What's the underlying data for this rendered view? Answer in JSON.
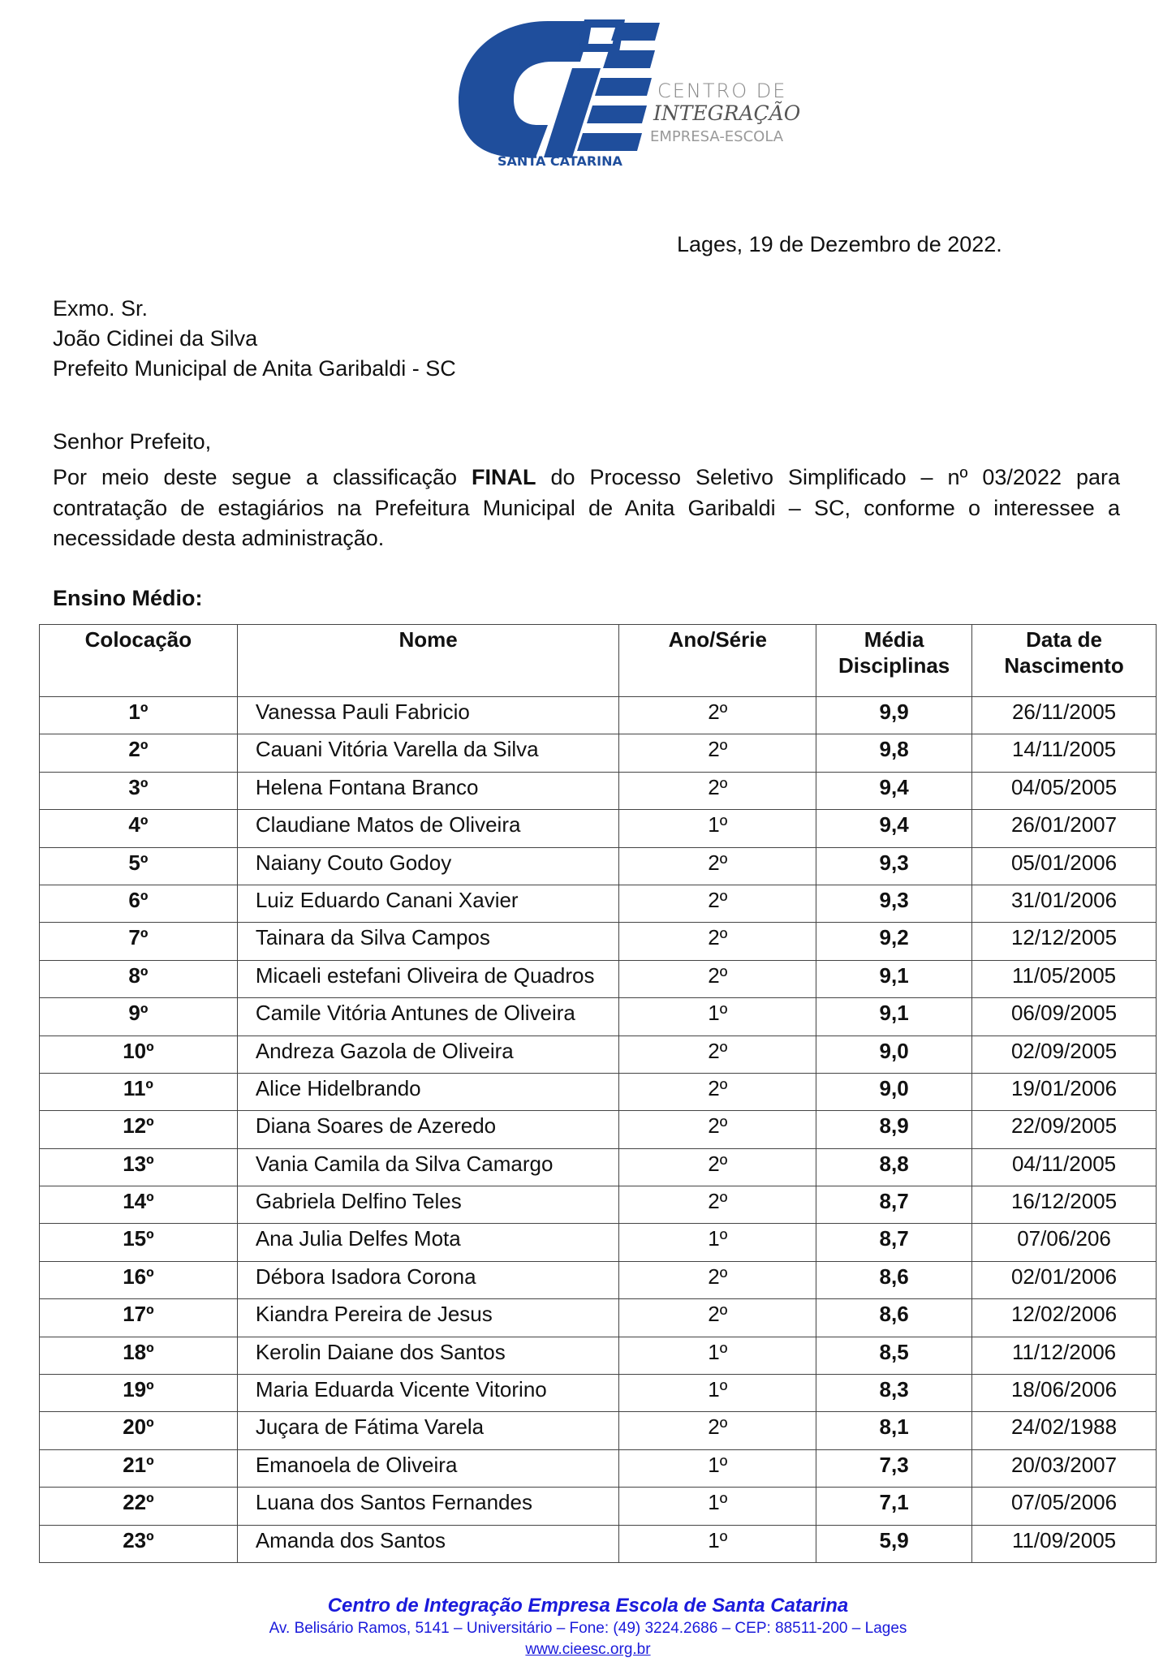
{
  "logo": {
    "line1": "CENTRO DE",
    "line2": "INTEGRAÇÃO",
    "line3": "EMPRESA-ESCOLA",
    "region": "SANTA CATARINA",
    "brand_color": "#1f4e9c"
  },
  "letter": {
    "date": "Lages, 19 de Dezembro de 2022.",
    "recipient": [
      "Exmo. Sr.",
      "João Cidinei da Silva",
      "Prefeito Municipal de Anita Garibaldi - SC"
    ],
    "salutation": "Senhor Prefeito,",
    "body_before": "Por meio deste segue a classificação ",
    "body_bold": "FINAL",
    "body_after": " do Processo Seletivo Simplificado – nº 03/2022 para contratação de estagiários na Prefeitura Municipal de Anita Garibaldi – SC, conforme o interessee a necessidade desta administração.",
    "section": "Ensino Médio:"
  },
  "table": {
    "headers": [
      "Colocação",
      "Nome",
      "Ano/Série",
      "Média Disciplinas",
      "Data de Nascimento"
    ],
    "rows": [
      [
        "1º",
        "Vanessa Pauli Fabricio",
        "2º",
        "9,9",
        "26/11/2005"
      ],
      [
        "2º",
        "Cauani Vitória Varella da Silva",
        "2º",
        "9,8",
        "14/11/2005"
      ],
      [
        "3º",
        "Helena Fontana Branco",
        "2º",
        "9,4",
        "04/05/2005"
      ],
      [
        "4º",
        "Claudiane Matos de Oliveira",
        "1º",
        "9,4",
        "26/01/2007"
      ],
      [
        "5º",
        "Naiany Couto Godoy",
        "2º",
        "9,3",
        "05/01/2006"
      ],
      [
        "6º",
        "Luiz Eduardo Canani Xavier",
        "2º",
        "9,3",
        "31/01/2006"
      ],
      [
        "7º",
        "Tainara da Silva Campos",
        "2º",
        "9,2",
        "12/12/2005"
      ],
      [
        "8º",
        "Micaeli estefani Oliveira de Quadros",
        "2º",
        "9,1",
        "11/05/2005"
      ],
      [
        "9º",
        "Camile Vitória Antunes de Oliveira",
        "1º",
        "9,1",
        "06/09/2005"
      ],
      [
        "10º",
        "Andreza Gazola de Oliveira",
        "2º",
        "9,0",
        "02/09/2005"
      ],
      [
        "11º",
        "Alice Hidelbrando",
        "2º",
        "9,0",
        "19/01/2006"
      ],
      [
        "12º",
        "Diana Soares de Azeredo",
        "2º",
        "8,9",
        "22/09/2005"
      ],
      [
        "13º",
        "Vania Camila da Silva Camargo",
        "2º",
        "8,8",
        "04/11/2005"
      ],
      [
        "14º",
        "Gabriela Delfino Teles",
        "2º",
        "8,7",
        "16/12/2005"
      ],
      [
        "15º",
        "Ana Julia Delfes Mota",
        "1º",
        "8,7",
        "07/06/206"
      ],
      [
        "16º",
        "Débora Isadora Corona",
        "2º",
        "8,6",
        "02/01/2006"
      ],
      [
        "17º",
        "Kiandra Pereira de Jesus",
        "2º",
        "8,6",
        "12/02/2006"
      ],
      [
        "18º",
        "Kerolin Daiane dos Santos",
        "1º",
        "8,5",
        "11/12/2006"
      ],
      [
        "19º",
        "Maria Eduarda Vicente Vitorino",
        "1º",
        "8,3",
        "18/06/2006"
      ],
      [
        "20º",
        "Juçara de Fátima Varela",
        "2º",
        "8,1",
        "24/02/1988"
      ],
      [
        "21º",
        "Emanoela de Oliveira",
        "1º",
        "7,3",
        "20/03/2007"
      ],
      [
        "22º",
        "Luana dos Santos Fernandes",
        "1º",
        "7,1",
        "07/05/2006"
      ],
      [
        "23º",
        "Amanda dos Santos",
        "1º",
        "5,9",
        "11/09/2005"
      ]
    ]
  },
  "footer": {
    "org": "Centro de Integração Empresa Escola de Santa Catarina",
    "address": "Av. Belisário Ramos, 5141 – Universitário – Fone: (49) 3224.2686 – CEP: 88511-200 –  Lages",
    "website": "www.cieesc.org.br",
    "color": "#1a1adb"
  }
}
